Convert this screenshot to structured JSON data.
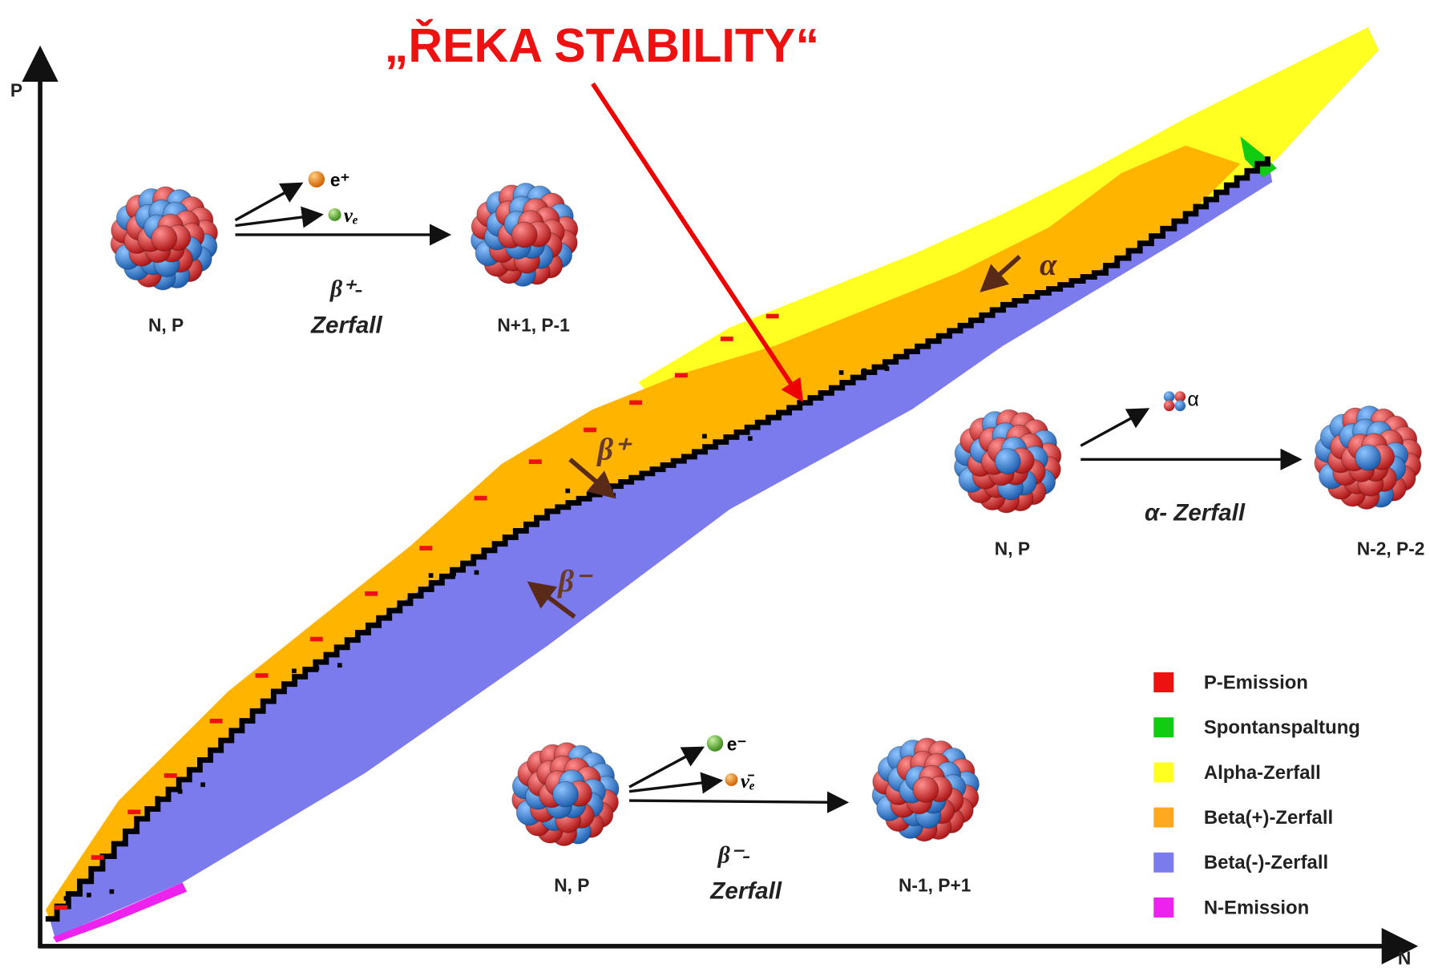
{
  "title": "„ŘEKA STABILITY“",
  "axes": {
    "y": "P",
    "x": "N"
  },
  "band_labels": {
    "alpha": "α",
    "beta_plus": "β⁺",
    "beta_minus": "β⁻"
  },
  "panels": [
    {
      "from": "N, P",
      "to": "N+1, P-1",
      "particle_1": "e⁺",
      "particle_2": "νₑ",
      "decay": "β⁺-",
      "decay_word": "Zerfall"
    },
    {
      "from": "N, P",
      "to": "N-2, P-2",
      "particle_1": "α",
      "decay": "α- Zerfall"
    },
    {
      "from": "N, P",
      "to": "N-1, P+1",
      "particle_1": "e⁻",
      "particle_2": "ν̄ₑ",
      "decay": "β⁻-",
      "decay_word": "Zerfall"
    }
  ],
  "legend": [
    {
      "name": "P-Emission",
      "color": "#ee1111"
    },
    {
      "name": "Spontanspaltung",
      "color": "#11cc11"
    },
    {
      "name": "Alpha-Zerfall",
      "color": "#ffff22"
    },
    {
      "name": "Beta(+)-Zerfall",
      "color": "#ffa820"
    },
    {
      "name": "Beta(-)-Zerfall",
      "color": "#7b7bee"
    },
    {
      "name": "N-Emission",
      "color": "#ee22ee"
    }
  ]
}
